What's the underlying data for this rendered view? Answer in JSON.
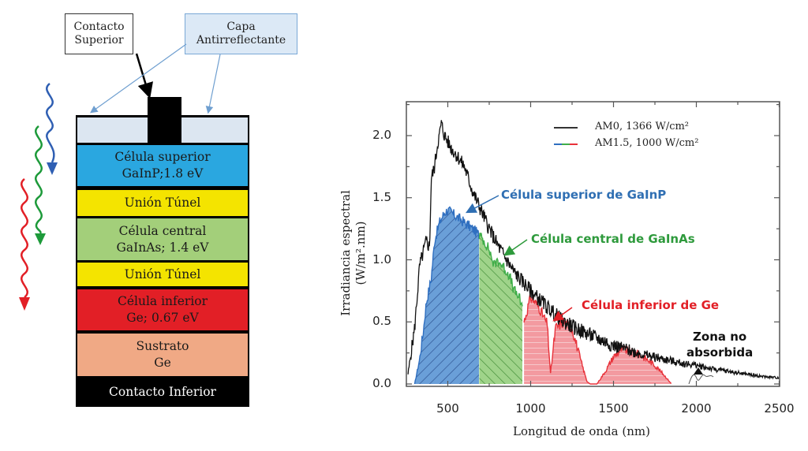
{
  "diagram": {
    "callouts": {
      "top_contact": "Contacto Superior",
      "top_contact_lines": [
        "Contacto",
        "Superior"
      ],
      "ar_coating_lines": [
        "Capa",
        "Antirreflectante"
      ]
    },
    "layers": [
      {
        "name": "antireflective-coating",
        "lines": [],
        "color": "#dce6f1"
      },
      {
        "name": "top-cell",
        "lines": [
          "Célula superior",
          "GaInP;1.8 eV"
        ],
        "color": "#2aa7e0"
      },
      {
        "name": "tunnel-junction-1",
        "lines": [
          "Unión Túnel"
        ],
        "color": "#f4e400"
      },
      {
        "name": "middle-cell",
        "lines": [
          "Célula central",
          "GaInAs; 1.4 eV"
        ],
        "color": "#a3cf7a"
      },
      {
        "name": "tunnel-junction-2",
        "lines": [
          "Unión Túnel"
        ],
        "color": "#f4e400"
      },
      {
        "name": "bottom-cell",
        "lines": [
          "Célula inferior",
          "Ge; 0.67 eV"
        ],
        "color": "#e21f26"
      },
      {
        "name": "substrate",
        "lines": [
          "Sustrato",
          "Ge"
        ],
        "color": "#f0a985"
      },
      {
        "name": "bottom-contact",
        "lines": [
          "Contacto Inferior"
        ],
        "color": "#000000"
      }
    ],
    "light_colors": {
      "blue": "#2f5fb3",
      "green": "#1d9a3a",
      "red": "#e21f26"
    }
  },
  "chart_data": {
    "type": "area",
    "title": "",
    "xlabel": "Longitud de onda (nm)",
    "ylabel_lines": [
      "Irradiancia espectral",
      "(W/m².nm)"
    ],
    "xlim": [
      250,
      2500
    ],
    "ylim": [
      0.0,
      2.25
    ],
    "xticks": [
      "500",
      "1000",
      "1500",
      "2000",
      "2500"
    ],
    "xtick_values": [
      500,
      1000,
      1500,
      2000,
      2500
    ],
    "yticks": [
      "0.0",
      "0.5",
      "1.0",
      "1.5",
      "2.0"
    ],
    "ytick_values": [
      0.0,
      0.5,
      1.0,
      1.5,
      2.0
    ],
    "legend": [
      {
        "label": "AM0, 1366 W/cm²",
        "color": "#222222"
      },
      {
        "label": "AM1.5, 1000 W/cm²",
        "colors": [
          "#2f6fc0",
          "#3fae49",
          "#e8323a"
        ]
      }
    ],
    "legend_position": "top-right",
    "series": [
      {
        "name": "AM0",
        "color": "#111111",
        "x": [
          260,
          300,
          330,
          350,
          370,
          390,
          400,
          420,
          440,
          450,
          460,
          470,
          480,
          500,
          520,
          550,
          600,
          650,
          700,
          750,
          800,
          900,
          1000,
          1100,
          1200,
          1300,
          1400,
          1500,
          1600,
          1700,
          1800,
          1900,
          2000,
          2100,
          2200,
          2300,
          2400,
          2500
        ],
        "y": [
          0.08,
          0.45,
          0.95,
          1.05,
          1.15,
          1.1,
          1.65,
          1.75,
          1.95,
          2.0,
          2.1,
          2.05,
          2.0,
          1.95,
          1.9,
          1.85,
          1.75,
          1.55,
          1.4,
          1.25,
          1.12,
          0.9,
          0.75,
          0.62,
          0.5,
          0.43,
          0.37,
          0.31,
          0.27,
          0.23,
          0.2,
          0.17,
          0.15,
          0.12,
          0.1,
          0.08,
          0.06,
          0.05
        ]
      },
      {
        "name": "AM1.5 (GaInP)",
        "color": "#2f6fc0",
        "x": [
          300,
          330,
          350,
          370,
          400,
          420,
          450,
          480,
          500,
          550,
          600,
          650,
          690
        ],
        "y": [
          0.0,
          0.2,
          0.4,
          0.65,
          0.85,
          1.15,
          1.3,
          1.38,
          1.4,
          1.35,
          1.3,
          1.25,
          1.2
        ]
      },
      {
        "name": "AM1.5 (GaInAs)",
        "color": "#3fae49",
        "x": [
          690,
          720,
          750,
          780,
          800,
          830,
          870,
          900,
          930,
          950
        ],
        "y": [
          1.2,
          1.15,
          1.08,
          0.95,
          1.0,
          0.95,
          0.88,
          0.75,
          0.7,
          0.6
        ]
      },
      {
        "name": "AM1.5 (Ge)",
        "color": "#e8323a",
        "x": [
          960,
          1000,
          1050,
          1100,
          1120,
          1150,
          1200,
          1250,
          1300,
          1340,
          1360,
          1400,
          1450,
          1500,
          1550,
          1600,
          1650,
          1700,
          1750,
          1800,
          1850
        ],
        "y": [
          0.5,
          0.7,
          0.62,
          0.48,
          0.08,
          0.45,
          0.5,
          0.45,
          0.2,
          0.02,
          0.0,
          0.0,
          0.1,
          0.22,
          0.28,
          0.26,
          0.24,
          0.2,
          0.15,
          0.08,
          0.0
        ]
      }
    ],
    "bands": [
      {
        "name": "GaInP",
        "x_start": 300,
        "x_end": 690,
        "color": "#6a9fd8",
        "hatch": "diagonal-up"
      },
      {
        "name": "GaInAs",
        "x_start": 690,
        "x_end": 950,
        "color": "#9fd38a",
        "hatch": "diagonal-down"
      },
      {
        "name": "Ge",
        "x_start": 960,
        "x_end": 1850,
        "color": "#f39aa0",
        "hatch": "horizontal"
      }
    ],
    "annotations": [
      {
        "text": "Célula superior de GaInP",
        "color": "#2f6fb3",
        "x": 650,
        "y": 1.55
      },
      {
        "text": "Célula central de GaInAs",
        "color": "#2e9a3c",
        "x": 850,
        "y": 1.15
      },
      {
        "text": "Célula inferior de Ge",
        "color": "#e21f26",
        "x": 1340,
        "y": 0.62
      },
      {
        "text_lines": [
          "Zona no",
          "absorbida"
        ],
        "color": "#111111",
        "x": 2100,
        "y": 0.25
      }
    ]
  }
}
